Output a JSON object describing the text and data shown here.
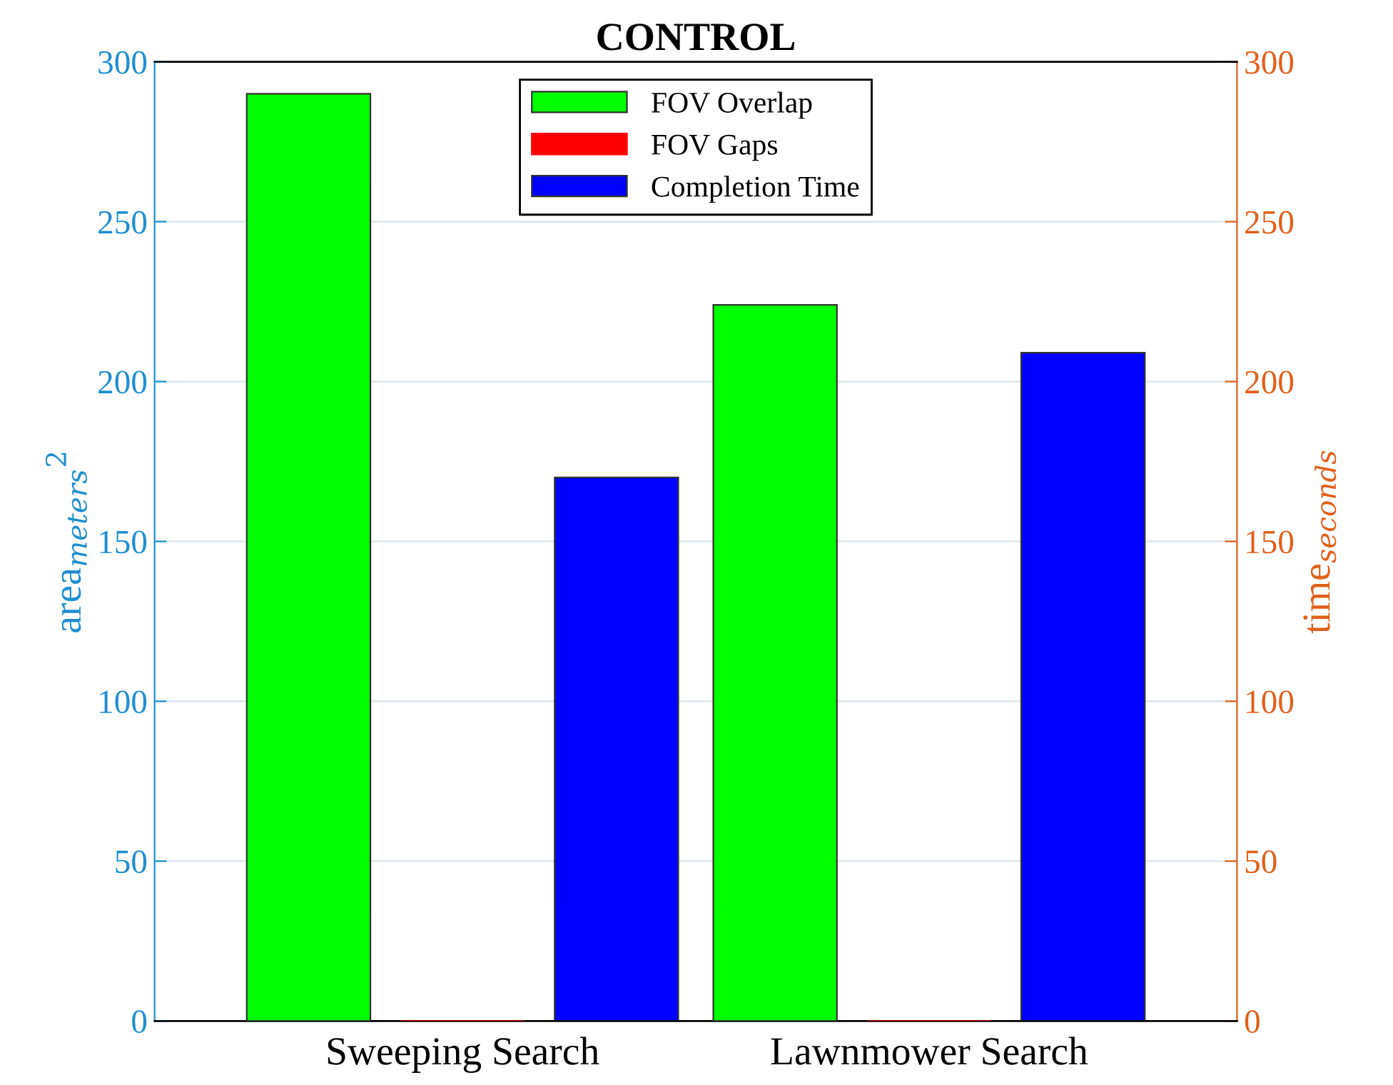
{
  "chart_data": {
    "type": "bar",
    "title": "CONTROL",
    "categories": [
      "Sweeping Search",
      "Lawnmower Search"
    ],
    "series": [
      {
        "name": "FOV Overlap",
        "color": "#00ff00",
        "values": [
          290,
          224
        ]
      },
      {
        "name": "FOV Gaps",
        "color": "#ff0000",
        "values": [
          0,
          0
        ]
      },
      {
        "name": "Completion Time",
        "color": "#0000ff",
        "values": [
          170,
          209
        ],
        "axis": "y2"
      }
    ],
    "ylabel": "area$_{meters}$$^{2}$",
    "y2label": "time$_{seconds}$",
    "ylim": [
      0,
      300
    ],
    "yticks": [
      0,
      50,
      100,
      150,
      200,
      250,
      300
    ],
    "y2lim": [
      0,
      300
    ],
    "y2ticks": [
      0,
      50,
      100,
      150,
      200,
      250,
      300
    ],
    "grid": "y",
    "legend": "top"
  }
}
